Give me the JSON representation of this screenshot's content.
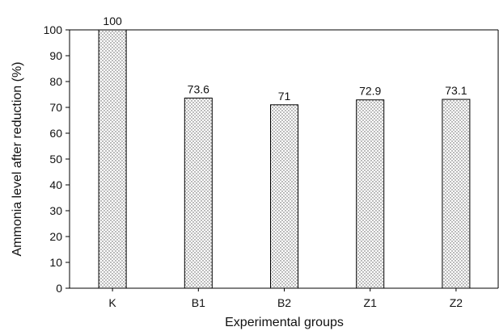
{
  "chart_data": {
    "type": "bar",
    "categories": [
      "K",
      "B1",
      "B2",
      "Z1",
      "Z2"
    ],
    "values": [
      100,
      73.6,
      71,
      72.9,
      73.1
    ],
    "data_labels": [
      "100",
      "73.6",
      "71",
      "72.9",
      "73.1"
    ],
    "title": "",
    "xlabel": "Experimental groups",
    "ylabel": "Ammonia level after reduction (%)",
    "ylim": [
      0,
      100
    ],
    "yticks": [
      0,
      10,
      20,
      30,
      40,
      50,
      60,
      70,
      80,
      90,
      100
    ],
    "grid": false,
    "legend": "none",
    "bar_fill": "#ffffff",
    "bar_pattern_color": "#555555",
    "axis_color": "#000000"
  }
}
